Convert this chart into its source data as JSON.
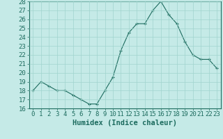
{
  "x": [
    0,
    1,
    2,
    3,
    4,
    5,
    6,
    7,
    8,
    9,
    10,
    11,
    12,
    13,
    14,
    15,
    16,
    17,
    18,
    19,
    20,
    21,
    22,
    23
  ],
  "y": [
    18,
    19,
    18.5,
    18,
    18,
    17.5,
    17,
    16.5,
    16.5,
    18,
    19.5,
    22.5,
    24.5,
    25.5,
    25.5,
    27,
    28,
    26.5,
    25.5,
    23.5,
    22,
    21.5,
    21.5,
    20.5
  ],
  "line_color": "#1c6b5e",
  "marker": "+",
  "bg_color": "#c5eae7",
  "grid_color": "#a0d4ce",
  "axis_color": "#1c6b5e",
  "tick_color": "#1c6b5e",
  "xlabel": "Humidex (Indice chaleur)",
  "ylim": [
    16,
    28
  ],
  "yticks": [
    16,
    17,
    18,
    19,
    20,
    21,
    22,
    23,
    24,
    25,
    26,
    27,
    28
  ],
  "xticks": [
    0,
    1,
    2,
    3,
    4,
    5,
    6,
    7,
    8,
    9,
    10,
    11,
    12,
    13,
    14,
    15,
    16,
    17,
    18,
    19,
    20,
    21,
    22,
    23
  ],
  "font_size": 6.5,
  "xlabel_fontsize": 7.5
}
